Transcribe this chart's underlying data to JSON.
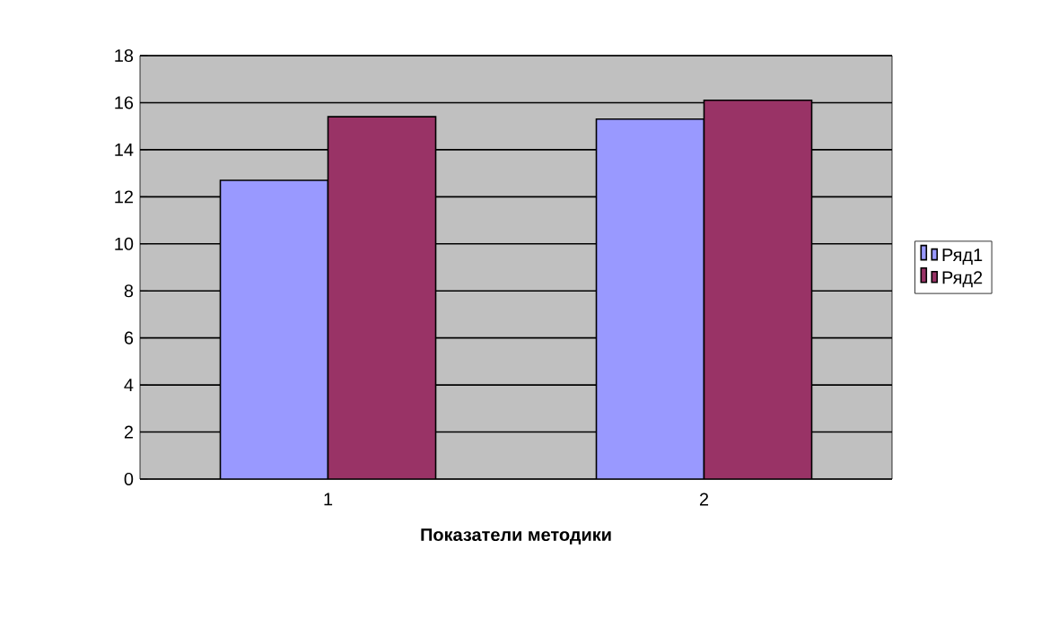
{
  "chart_data": {
    "type": "bar",
    "xlabel": "Показатели методики",
    "categories": [
      "1",
      "2"
    ],
    "series": [
      {
        "name": "Ряд1",
        "color": "#9999ff",
        "values": [
          12.7,
          15.3
        ]
      },
      {
        "name": "Ряд2",
        "color": "#993366",
        "values": [
          15.4,
          16.1
        ]
      }
    ],
    "ylim": [
      0,
      18
    ],
    "yticks": [
      0,
      2,
      4,
      6,
      8,
      10,
      12,
      14,
      16,
      18
    ],
    "grid": "y",
    "legend": "right"
  }
}
